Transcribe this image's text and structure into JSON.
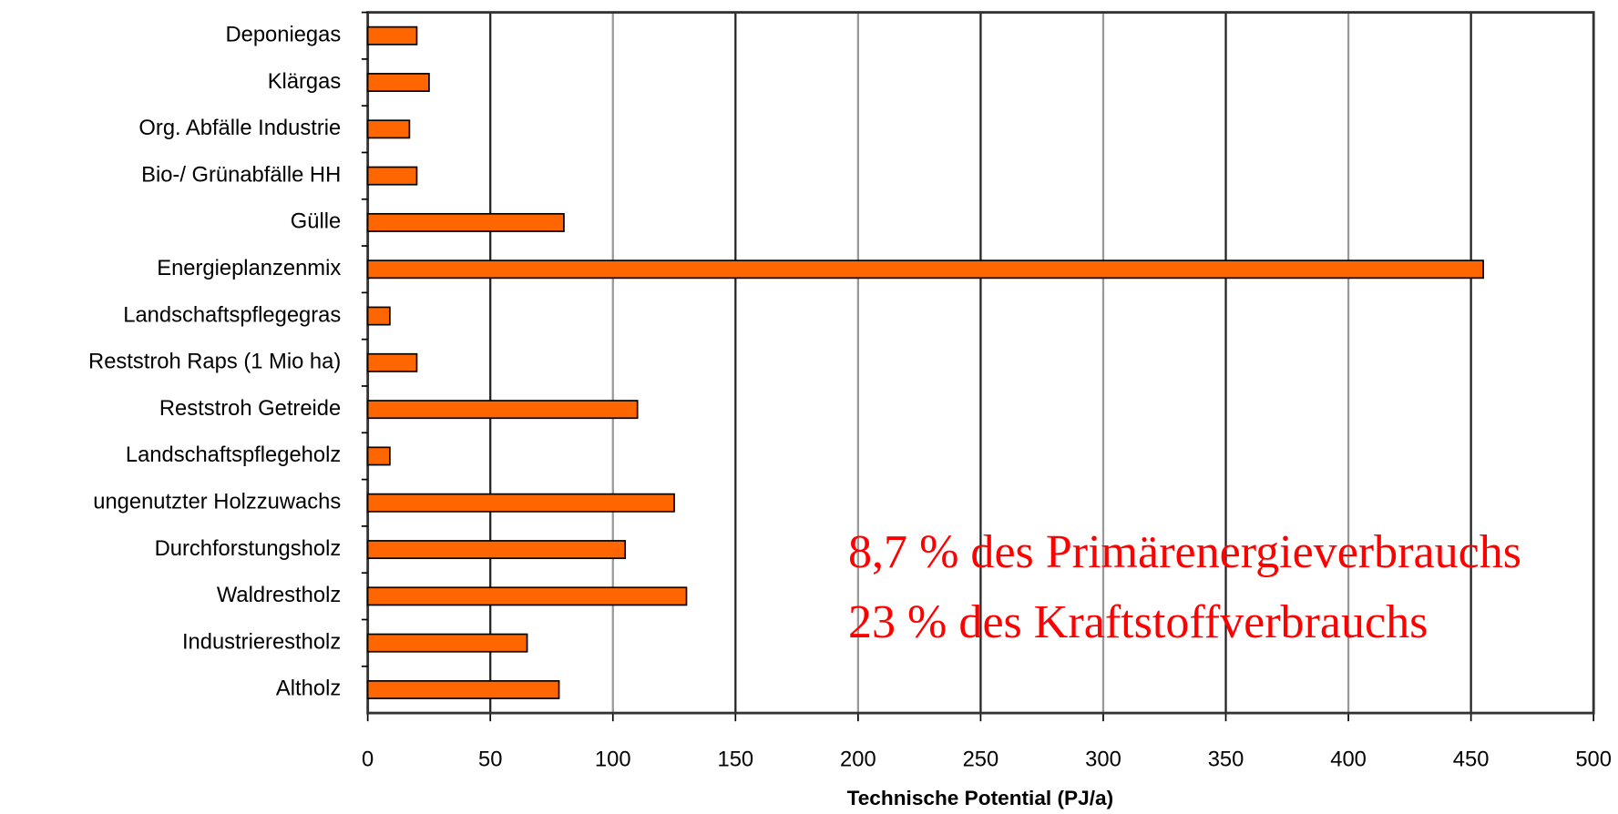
{
  "chart_data": {
    "type": "hbar",
    "xlabel": "Technische Potential (PJ/a)",
    "categories": [
      "Deponiegas",
      "Klärgas",
      "Org. Abfälle Industrie",
      "Bio-/ Grünabfälle HH",
      "Gülle",
      "Energieplanzenmix",
      "Landschaftspflegegras",
      "Reststroh Raps (1 Mio ha)",
      "Reststroh Getreide",
      "Landschaftspflegeholz",
      "ungenutzter Holzzuwachs",
      "Durchforstungsholz",
      "Waldrestholz",
      "Industrierestholz",
      "Altholz"
    ],
    "values": [
      20,
      25,
      17,
      20,
      80,
      455,
      9,
      20,
      110,
      9,
      125,
      105,
      130,
      65,
      78
    ],
    "color": "#ff6600",
    "xlim": [
      0,
      500
    ],
    "xticks": [
      0,
      50,
      100,
      150,
      200,
      250,
      300,
      350,
      400,
      450,
      500
    ],
    "grid": true,
    "annotations": [
      "8,7 % des Primärenergieverbrauchs",
      "23 % des Kraftstoffverbrauchs"
    ]
  }
}
